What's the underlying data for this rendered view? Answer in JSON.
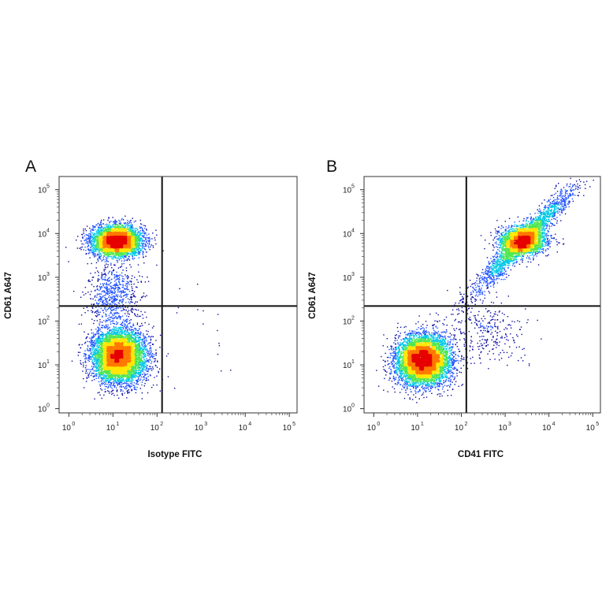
{
  "chart_data": [
    {
      "type": "scatter",
      "panel_label": "A",
      "xlabel": "Isotype FITC",
      "ylabel": "CD61 A647",
      "x_scale": "log",
      "y_scale": "log",
      "xlim": [
        0.6,
        150000
      ],
      "ylim": [
        0.8,
        200000
      ],
      "x_ticks": [
        {
          "base": "10",
          "exp": "0"
        },
        {
          "base": "10",
          "exp": "1"
        },
        {
          "base": "10",
          "exp": "2"
        },
        {
          "base": "10",
          "exp": "3"
        },
        {
          "base": "10",
          "exp": "4"
        },
        {
          "base": "10",
          "exp": "5"
        }
      ],
      "y_ticks": [
        {
          "base": "10",
          "exp": "0"
        },
        {
          "base": "10",
          "exp": "1"
        },
        {
          "base": "10",
          "exp": "2"
        },
        {
          "base": "10",
          "exp": "3"
        },
        {
          "base": "10",
          "exp": "4"
        },
        {
          "base": "10",
          "exp": "5"
        }
      ],
      "quadrant_gate": {
        "x": 130,
        "y": 220
      },
      "grid": false,
      "colors": [
        "#0a0aa0",
        "#1e50ff",
        "#00c8e6",
        "#50e650",
        "#ffe600",
        "#ff7800",
        "#e60000"
      ],
      "populations": [
        {
          "center": [
            12,
            7000
          ],
          "spread_log10": [
            0.28,
            0.17
          ],
          "events": 4500
        },
        {
          "center": [
            13,
            16
          ],
          "spread_log10": [
            0.3,
            0.3
          ],
          "events": 6500
        },
        {
          "center": [
            10,
            400
          ],
          "spread_log10": [
            0.3,
            0.35
          ],
          "events": 700
        },
        {
          "center": [
            800,
            40
          ],
          "spread_log10": [
            0.6,
            0.5
          ],
          "events": 18
        }
      ]
    },
    {
      "type": "scatter",
      "panel_label": "B",
      "xlabel": "CD41 FITC",
      "ylabel": "CD61 A647",
      "x_scale": "log",
      "y_scale": "log",
      "xlim": [
        0.6,
        150000
      ],
      "ylim": [
        0.8,
        200000
      ],
      "x_ticks": [
        {
          "base": "10",
          "exp": "0"
        },
        {
          "base": "10",
          "exp": "1"
        },
        {
          "base": "10",
          "exp": "2"
        },
        {
          "base": "10",
          "exp": "3"
        },
        {
          "base": "10",
          "exp": "4"
        },
        {
          "base": "10",
          "exp": "5"
        }
      ],
      "y_ticks": [
        {
          "base": "10",
          "exp": "0"
        },
        {
          "base": "10",
          "exp": "1"
        },
        {
          "base": "10",
          "exp": "2"
        },
        {
          "base": "10",
          "exp": "3"
        },
        {
          "base": "10",
          "exp": "4"
        },
        {
          "base": "10",
          "exp": "5"
        }
      ],
      "quadrant_gate": {
        "x": 130,
        "y": 220
      },
      "grid": false,
      "colors": [
        "#0a0aa0",
        "#1e50ff",
        "#00c8e6",
        "#50e650",
        "#ffe600",
        "#ff7800",
        "#e60000"
      ],
      "populations": [
        {
          "center": [
            13,
            13
          ],
          "spread_log10": [
            0.3,
            0.28
          ],
          "events": 6500
        },
        {
          "center": [
            2500,
            7000
          ],
          "spread_log10": [
            0.25,
            0.15
          ],
          "events": 2600
        },
        {
          "center": [
            2500,
            7000
          ],
          "spread_log10": [
            0.45,
            0.6
          ],
          "events": 2200,
          "correlated": true
        },
        {
          "center": [
            400,
            60
          ],
          "spread_log10": [
            0.4,
            0.4
          ],
          "events": 300
        }
      ]
    }
  ]
}
